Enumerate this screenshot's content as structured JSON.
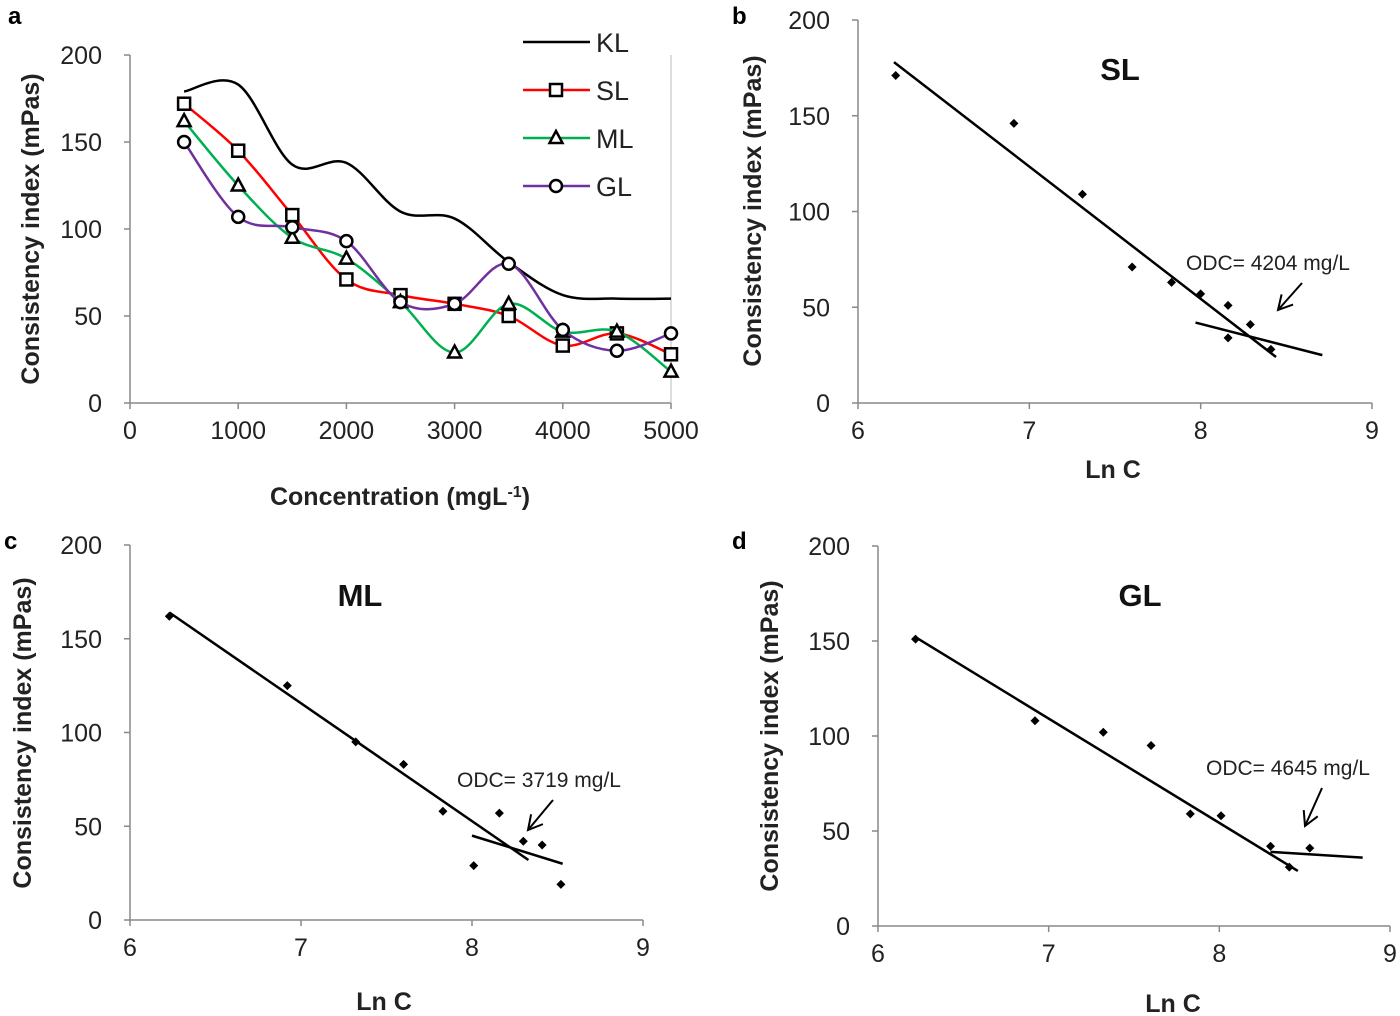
{
  "chart_data": [
    {
      "panel": "a",
      "type": "line",
      "xlabel": "Concentration (mgL-1)",
      "ylabel": "Consistency index (mPas)",
      "xlim": [
        0,
        5000
      ],
      "ylim": [
        0,
        200
      ],
      "xticks": [
        0,
        1000,
        2000,
        3000,
        4000,
        5000
      ],
      "yticks": [
        0,
        50,
        100,
        150,
        200
      ],
      "grid": false,
      "legend_position": "top-right",
      "x": [
        500,
        1000,
        1500,
        2000,
        2500,
        3000,
        3500,
        4000,
        4500,
        5000
      ],
      "series": [
        {
          "name": "KL",
          "color": "#000000",
          "marker": "none",
          "values": [
            179,
            183,
            137,
            138,
            110,
            106,
            81,
            62,
            60,
            60
          ]
        },
        {
          "name": "SL",
          "color": "#ff0000",
          "marker": "square",
          "values": [
            172,
            145,
            108,
            71,
            62,
            57,
            50,
            33,
            40,
            28
          ]
        },
        {
          "name": "ML",
          "color": "#00b050",
          "marker": "triangle",
          "values": [
            162,
            125,
            95,
            83,
            58,
            29,
            57,
            41,
            41,
            18
          ]
        },
        {
          "name": "GL",
          "color": "#7030a0",
          "marker": "circle",
          "values": [
            150,
            107,
            101,
            93,
            58,
            57,
            80,
            42,
            30,
            40
          ]
        }
      ]
    },
    {
      "panel": "b",
      "type": "scatter",
      "title": "SL",
      "xlabel": "Ln C",
      "ylabel": "Consistency index (mPas)",
      "xlim": [
        6,
        9
      ],
      "ylim": [
        0,
        200
      ],
      "xticks": [
        6,
        7,
        8,
        9
      ],
      "yticks": [
        0,
        50,
        100,
        150,
        200
      ],
      "grid": false,
      "points": [
        [
          6.22,
          171
        ],
        [
          6.91,
          146
        ],
        [
          7.31,
          109
        ],
        [
          7.6,
          71
        ],
        [
          7.83,
          63
        ],
        [
          8.0,
          57
        ],
        [
          8.16,
          51
        ],
        [
          8.16,
          34
        ],
        [
          8.29,
          41
        ],
        [
          8.41,
          28
        ]
      ],
      "fit_lines": [
        [
          [
            6.21,
            178
          ],
          [
            8.44,
            24
          ]
        ],
        [
          [
            7.97,
            42
          ],
          [
            8.71,
            25
          ]
        ]
      ],
      "annotation": "ODC= 4204 mg/L"
    },
    {
      "panel": "c",
      "type": "scatter",
      "title": "ML",
      "xlabel": "Ln C",
      "ylabel": "Consistency index (mPas)",
      "xlim": [
        6,
        9
      ],
      "ylim": [
        0,
        200
      ],
      "xticks": [
        6,
        7,
        8,
        9
      ],
      "yticks": [
        0,
        50,
        100,
        150,
        200
      ],
      "grid": false,
      "points": [
        [
          6.23,
          162
        ],
        [
          6.92,
          125
        ],
        [
          7.32,
          95
        ],
        [
          7.6,
          83
        ],
        [
          7.83,
          58
        ],
        [
          8.01,
          29
        ],
        [
          8.16,
          57
        ],
        [
          8.3,
          42
        ],
        [
          8.41,
          40
        ],
        [
          8.52,
          19
        ]
      ],
      "fit_lines": [
        [
          [
            6.23,
            164
          ],
          [
            8.33,
            32
          ]
        ],
        [
          [
            8.0,
            45
          ],
          [
            8.53,
            30
          ]
        ]
      ],
      "annotation": "ODC= 3719 mg/L"
    },
    {
      "panel": "d",
      "type": "scatter",
      "title": "GL",
      "xlabel": "Ln C",
      "ylabel": "Consistency index (mPas)",
      "xlim": [
        6,
        9
      ],
      "ylim": [
        0,
        200
      ],
      "xticks": [
        6,
        7,
        8,
        9
      ],
      "yticks": [
        0,
        50,
        100,
        150,
        200
      ],
      "grid": false,
      "points": [
        [
          6.22,
          151
        ],
        [
          6.92,
          108
        ],
        [
          7.32,
          102
        ],
        [
          7.6,
          95
        ],
        [
          7.83,
          59
        ],
        [
          8.01,
          58
        ],
        [
          8.3,
          42
        ],
        [
          8.41,
          31
        ],
        [
          8.53,
          41
        ]
      ],
      "fit_lines": [
        [
          [
            6.22,
            152
          ],
          [
            8.46,
            29
          ]
        ],
        [
          [
            8.3,
            39
          ],
          [
            8.84,
            36
          ]
        ]
      ],
      "annotation": "ODC= 4645 mg/L"
    }
  ]
}
